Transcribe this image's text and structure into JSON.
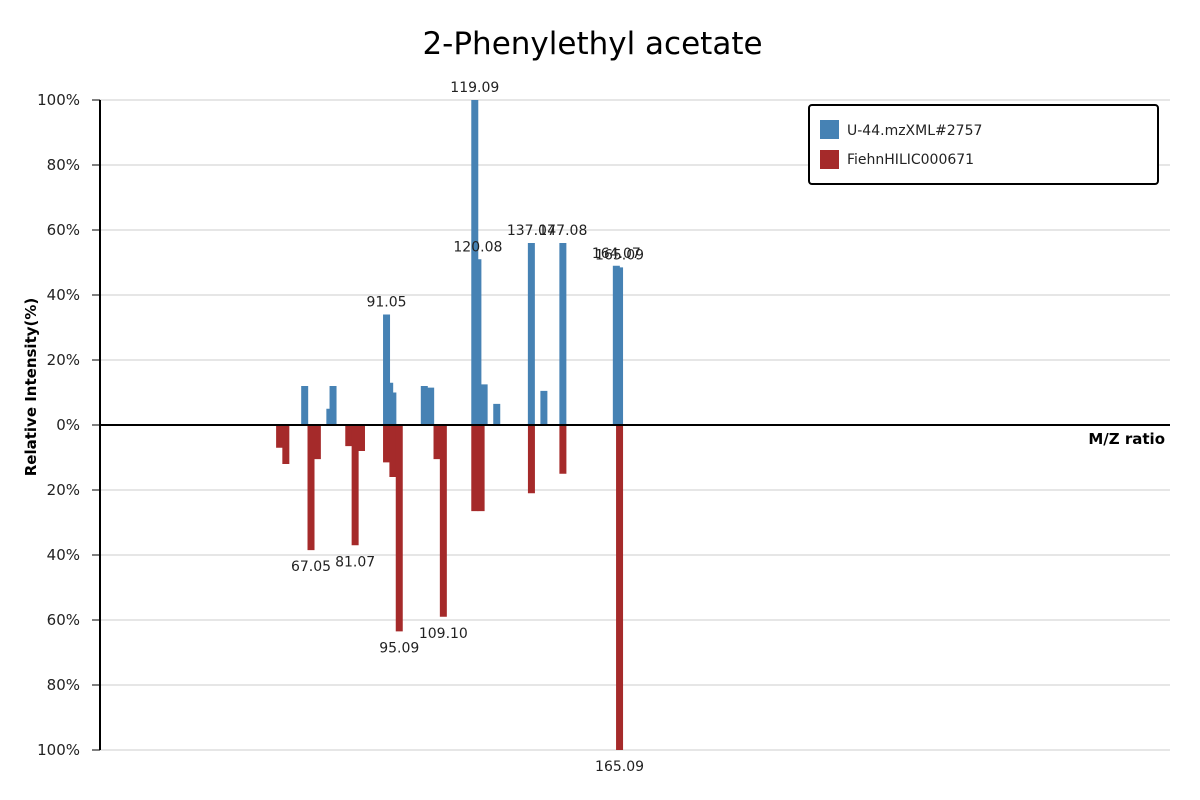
{
  "chart_data": {
    "type": "bar",
    "title": "2-Phenylethyl acetate",
    "xlabel": "M/Z ratio",
    "ylabel": "Relative Intensity(%)",
    "xlim": [
      0,
      340
    ],
    "ylim": [
      -100,
      100
    ],
    "yticks": [
      {
        "value": 100,
        "label": "100%"
      },
      {
        "value": 80,
        "label": "80%"
      },
      {
        "value": 60,
        "label": "60%"
      },
      {
        "value": 40,
        "label": "40%"
      },
      {
        "value": 20,
        "label": "20%"
      },
      {
        "value": 0,
        "label": "0%"
      },
      {
        "value": -20,
        "label": "20%"
      },
      {
        "value": -40,
        "label": "40%"
      },
      {
        "value": -60,
        "label": "60%"
      },
      {
        "value": -80,
        "label": "80%"
      },
      {
        "value": -100,
        "label": "100%"
      }
    ],
    "legend": {
      "position": "top-right"
    },
    "grid": true,
    "series": [
      {
        "name": "U-44.mzXML#2757",
        "color": "#4682b4",
        "direction": "up",
        "peaks": [
          {
            "mz": 65.04,
            "intensity": 12,
            "label": ""
          },
          {
            "mz": 73.04,
            "intensity": 5,
            "label": ""
          },
          {
            "mz": 74.05,
            "intensity": 12,
            "label": ""
          },
          {
            "mz": 91.05,
            "intensity": 34,
            "label": "91.05"
          },
          {
            "mz": 92.05,
            "intensity": 13,
            "label": ""
          },
          {
            "mz": 93.06,
            "intensity": 10,
            "label": ""
          },
          {
            "mz": 103.05,
            "intensity": 12,
            "label": ""
          },
          {
            "mz": 105.07,
            "intensity": 11.5,
            "label": ""
          },
          {
            "mz": 119.09,
            "intensity": 100,
            "label": "119.09"
          },
          {
            "mz": 120.08,
            "intensity": 51,
            "label": "120.08"
          },
          {
            "mz": 121.06,
            "intensity": 8,
            "label": ""
          },
          {
            "mz": 122.06,
            "intensity": 12.5,
            "label": ""
          },
          {
            "mz": 126.07,
            "intensity": 6.5,
            "label": ""
          },
          {
            "mz": 137.07,
            "intensity": 56,
            "label": "137.07"
          },
          {
            "mz": 141.05,
            "intensity": 10.5,
            "label": ""
          },
          {
            "mz": 147.08,
            "intensity": 56,
            "label": "147.08"
          },
          {
            "mz": 164.07,
            "intensity": 49,
            "label": "164.07"
          },
          {
            "mz": 165.09,
            "intensity": 48.5,
            "label": "165.09"
          }
        ]
      },
      {
        "name": "FiehnHILIC000671",
        "color": "#a52a2a",
        "direction": "down",
        "peaks": [
          {
            "mz": 57.07,
            "intensity": 7,
            "label": ""
          },
          {
            "mz": 59.05,
            "intensity": 12,
            "label": ""
          },
          {
            "mz": 67.05,
            "intensity": 38.5,
            "label": "67.05"
          },
          {
            "mz": 69.07,
            "intensity": 10.5,
            "label": ""
          },
          {
            "mz": 79.05,
            "intensity": 6.5,
            "label": ""
          },
          {
            "mz": 81.07,
            "intensity": 37,
            "label": "81.07"
          },
          {
            "mz": 83.09,
            "intensity": 8,
            "label": ""
          },
          {
            "mz": 91.05,
            "intensity": 11.5,
            "label": ""
          },
          {
            "mz": 93.07,
            "intensity": 16,
            "label": ""
          },
          {
            "mz": 95.09,
            "intensity": 63.5,
            "label": "95.09"
          },
          {
            "mz": 107.09,
            "intensity": 10.5,
            "label": ""
          },
          {
            "mz": 109.1,
            "intensity": 59,
            "label": "109.10"
          },
          {
            "mz": 119.09,
            "intensity": 26.5,
            "label": ""
          },
          {
            "mz": 121.1,
            "intensity": 26.5,
            "label": ""
          },
          {
            "mz": 137.09,
            "intensity": 21,
            "label": ""
          },
          {
            "mz": 147.09,
            "intensity": 15,
            "label": ""
          },
          {
            "mz": 165.09,
            "intensity": 100,
            "label": "165.09"
          }
        ]
      }
    ]
  }
}
